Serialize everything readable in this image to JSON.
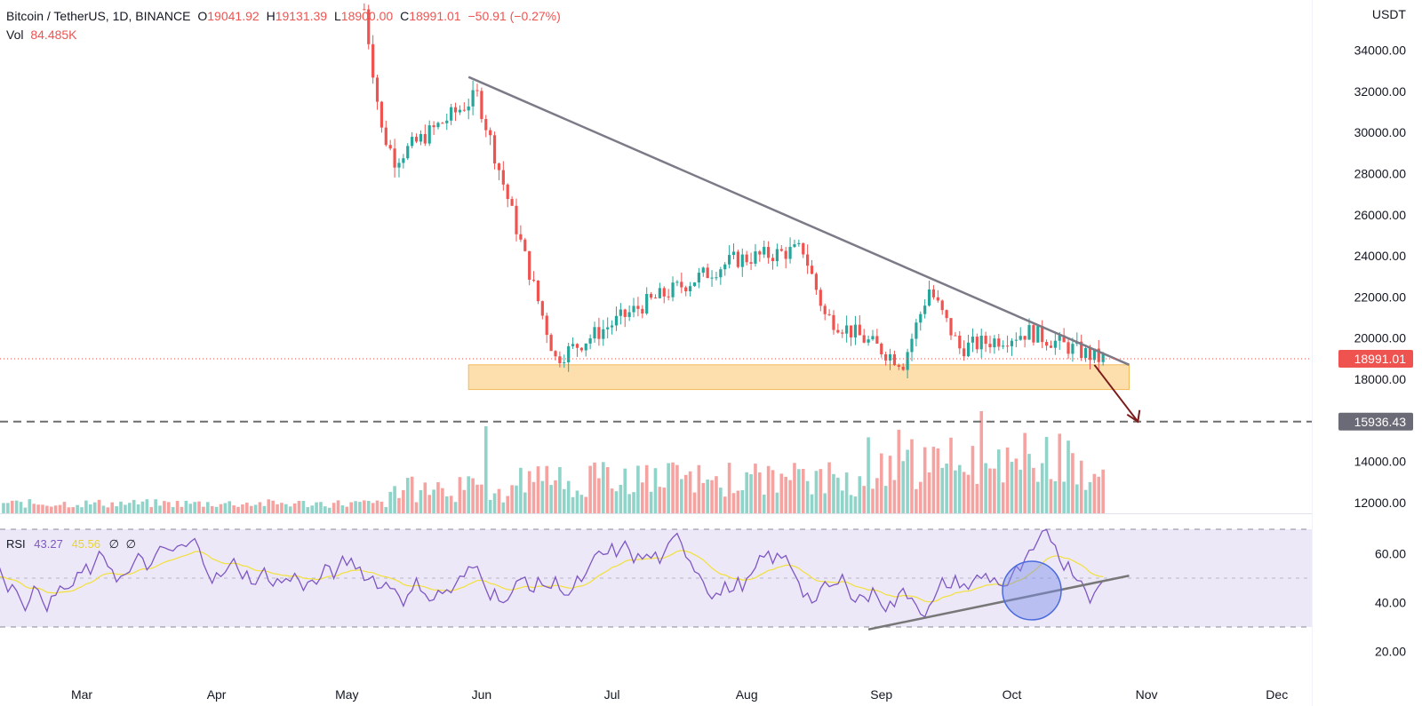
{
  "header": {
    "symbol": "Bitcoin / TetherUS, 1D, BINANCE",
    "o_key": "O",
    "o_val": "19041.92",
    "h_key": "H",
    "h_val": "19131.39",
    "l_key": "L",
    "l_val": "18900.00",
    "c_key": "C",
    "c_val": "18991.01",
    "change": "−50.91 (−0.27%)",
    "vol_key": "Vol",
    "vol_val": "84.485K"
  },
  "rsi_legend": {
    "label": "RSI",
    "value": "43.27",
    "ma_value": "45.56",
    "extra1": "∅",
    "extra2": "∅"
  },
  "price_axis": {
    "unit": "USDT",
    "ticks": [
      "34000.00",
      "32000.00",
      "30000.00",
      "28000.00",
      "26000.00",
      "24000.00",
      "22000.00",
      "20000.00",
      "18000.00",
      "14000.00",
      "12000.00"
    ]
  },
  "rsi_axis": {
    "ticks": [
      "60.00",
      "40.00",
      "20.00"
    ]
  },
  "time_axis": {
    "labels": [
      "Mar",
      "Apr",
      "May",
      "Jun",
      "Jul",
      "Aug",
      "Sep",
      "Oct",
      "Nov",
      "Dec"
    ]
  },
  "price_tags": {
    "last": "18991.01",
    "level": "15936.43"
  },
  "colors": {
    "up": "#26a69a",
    "down": "#ef5350",
    "vol_up": "#8fd3c9",
    "vol_down": "#f5a3a1",
    "rsi_line": "#7e57c2",
    "rsi_ma": "#f2e03a",
    "rsi_band": "#ede8f8",
    "trendline": "#7c7a86",
    "support_zone": "#fcd79a",
    "arrow": "#7b1c1c",
    "level_line": "#6e6e6e",
    "level_tag": "#6b6b78",
    "last_tag": "#ef5350",
    "circle": "#7b8ee8"
  },
  "chart_data": {
    "type": "candlestick",
    "title": "Bitcoin / TetherUS, 1D, BINANCE",
    "ylabel": "USDT",
    "ylim": [
      11500,
      35500
    ],
    "x_labels": [
      "Mar",
      "Apr",
      "May",
      "Jun",
      "Jul",
      "Aug",
      "Sep",
      "Oct",
      "Nov",
      "Dec"
    ],
    "last_close": 18991.01,
    "horizontal_level": 15936.43,
    "support_zone": [
      17500,
      18700
    ],
    "descending_trendline": [
      {
        "date": "2022-05-29",
        "price": 32700
      },
      {
        "date": "2022-10-28",
        "price": 18700
      }
    ],
    "key_closes": [
      {
        "date": "2022-05-05",
        "price": 36000
      },
      {
        "date": "2022-05-09",
        "price": 30100
      },
      {
        "date": "2022-05-12",
        "price": 28700
      },
      {
        "date": "2022-05-31",
        "price": 31800
      },
      {
        "date": "2022-06-13",
        "price": 22500
      },
      {
        "date": "2022-06-18",
        "price": 19000
      },
      {
        "date": "2022-07-08",
        "price": 21600
      },
      {
        "date": "2022-07-29",
        "price": 23800
      },
      {
        "date": "2022-08-14",
        "price": 24300
      },
      {
        "date": "2022-08-19",
        "price": 21100
      },
      {
        "date": "2022-09-06",
        "price": 18800
      },
      {
        "date": "2022-09-12",
        "price": 22400
      },
      {
        "date": "2022-09-19",
        "price": 19500
      },
      {
        "date": "2022-10-05",
        "price": 20300
      },
      {
        "date": "2022-10-21",
        "price": 19000
      }
    ],
    "rsi": {
      "period_value": 43.27,
      "ma_value": 45.56,
      "ylim": [
        15,
        75
      ],
      "bands": [
        30,
        50,
        70
      ],
      "rising_trendline": [
        {
          "date": "2022-08-29",
          "value": 29
        },
        {
          "date": "2022-10-28",
          "value": 51
        }
      ]
    }
  }
}
